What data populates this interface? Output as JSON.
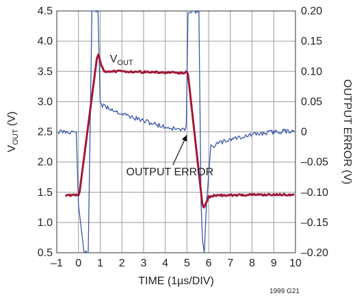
{
  "chart_data": {
    "type": "line",
    "x_axis": {
      "label": "TIME (1µs/DIV)",
      "range": [
        -1,
        10
      ],
      "ticks": [
        -1,
        0,
        1,
        2,
        3,
        4,
        5,
        6,
        7,
        8,
        9,
        10
      ],
      "tick_labels": [
        "–1",
        "0",
        "1",
        "2",
        "3",
        "4",
        "5",
        "6",
        "7",
        "8",
        "9",
        "10"
      ]
    },
    "y_axis_left": {
      "label_main": "V",
      "label_sub": "OUT",
      "label_unit": " (V)",
      "range": [
        0.5,
        4.5
      ],
      "ticks": [
        0.5,
        1.0,
        1.5,
        2.0,
        2.5,
        3.0,
        3.5,
        4.0,
        4.5
      ],
      "tick_labels": [
        "0.5",
        "1.0",
        "1.5",
        "2.0",
        "2.5",
        "3.0",
        "3.5",
        "4.0",
        "4.5"
      ]
    },
    "y_axis_right": {
      "label": "OUTPUT ERROR (V)",
      "range": [
        -0.2,
        0.2
      ],
      "ticks": [
        -0.2,
        -0.15,
        -0.1,
        -0.05,
        0,
        0.05,
        0.1,
        0.15,
        0.2
      ],
      "tick_labels": [
        "–0.20",
        "–0.15",
        "–0.10",
        "–0.05",
        "0",
        "0.05",
        "0.10",
        "0.15",
        "0.20"
      ]
    },
    "grid": true,
    "series": [
      {
        "name": "V_OUT",
        "axis": "left",
        "color": "#a01838",
        "x": [
          -0.6,
          0.0,
          0.05,
          0.85,
          0.92,
          1.05,
          1.2,
          2.0,
          3.0,
          4.0,
          4.9,
          4.97,
          5.05,
          5.7,
          5.78,
          5.88,
          6.0,
          6.3,
          7.0,
          8.0,
          9.0,
          9.95
        ],
        "y": [
          1.45,
          1.45,
          1.5,
          3.72,
          3.78,
          3.6,
          3.5,
          3.5,
          3.49,
          3.48,
          3.47,
          3.5,
          3.45,
          1.32,
          1.25,
          1.32,
          1.42,
          1.45,
          1.45,
          1.46,
          1.46,
          1.46
        ]
      },
      {
        "name": "OUTPUT ERROR",
        "axis": "right",
        "color": "#3a55a8",
        "x": [
          -0.95,
          -0.5,
          -0.1,
          0.0,
          0.25,
          0.45,
          0.62,
          0.75,
          0.9,
          1.0,
          1.1,
          1.5,
          2.0,
          3.0,
          4.0,
          4.9,
          4.97,
          5.05,
          5.2,
          5.4,
          5.55,
          5.65,
          5.72,
          5.8,
          5.9,
          6.1,
          6.4,
          7.0,
          8.0,
          9.0,
          9.95
        ],
        "y": [
          0.0,
          0.0,
          0.0,
          -0.12,
          -0.2,
          -0.2,
          0.2,
          0.2,
          0.2,
          0.05,
          0.043,
          0.038,
          0.03,
          0.018,
          0.008,
          0.002,
          0.01,
          0.2,
          0.2,
          0.2,
          0.2,
          -0.12,
          -0.18,
          -0.2,
          -0.12,
          -0.025,
          -0.02,
          -0.012,
          -0.005,
          0.0,
          0.002
        ]
      }
    ],
    "annotations": [
      {
        "text_main": "V",
        "text_sub": "OUT",
        "x": 1.45,
        "y": 3.65,
        "axis": "left"
      },
      {
        "text": "OUTPUT ERROR",
        "x": 2.2,
        "y": 1.78,
        "axis": "left"
      }
    ],
    "arrow": {
      "from": [
        4.35,
        1.95
      ],
      "to": [
        5.0,
        2.45
      ],
      "axis": "left"
    },
    "figure_code": "1999 G21"
  }
}
